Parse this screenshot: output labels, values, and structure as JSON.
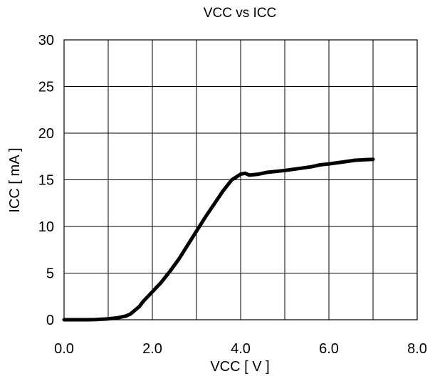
{
  "chart_data": {
    "type": "line",
    "title": "VCC vs ICC",
    "xlabel": "VCC [ V ]",
    "ylabel": "ICC [ mA ]",
    "xlim": [
      0,
      8
    ],
    "ylim": [
      0,
      30
    ],
    "xticks": [
      0,
      2,
      4,
      6,
      8
    ],
    "yticks": [
      0,
      5,
      10,
      15,
      20,
      25,
      30
    ],
    "xtick_labels": [
      "0.0",
      "2.0",
      "4.0",
      "6.0",
      "8.0"
    ],
    "ytick_labels": [
      "0",
      "5",
      "10",
      "15",
      "20",
      "25",
      "30"
    ],
    "grid": true,
    "legend": "none",
    "series": [
      {
        "color": "#000000",
        "x": [
          0.0,
          0.5,
          0.7,
          1.0,
          1.2,
          1.4,
          1.5,
          1.6,
          1.7,
          1.8,
          2.0,
          2.2,
          2.4,
          2.6,
          2.8,
          3.0,
          3.2,
          3.4,
          3.6,
          3.8,
          4.0,
          4.1,
          4.2,
          4.4,
          4.6,
          4.8,
          5.0,
          5.3,
          5.6,
          5.8,
          6.0,
          6.3,
          6.6,
          7.0
        ],
        "y": [
          0.0,
          0.0,
          0.02,
          0.1,
          0.2,
          0.4,
          0.6,
          1.0,
          1.4,
          2.0,
          3.0,
          4.0,
          5.2,
          6.5,
          8.0,
          9.5,
          11.0,
          12.4,
          13.8,
          15.0,
          15.6,
          15.7,
          15.5,
          15.6,
          15.8,
          15.9,
          16.0,
          16.2,
          16.4,
          16.6,
          16.7,
          16.9,
          17.1,
          17.2
        ]
      }
    ]
  }
}
